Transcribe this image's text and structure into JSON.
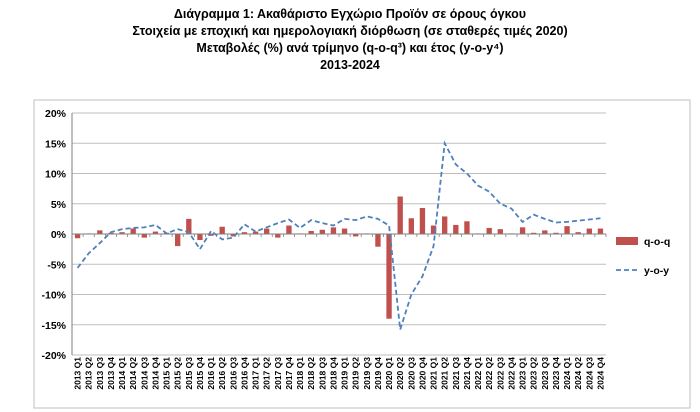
{
  "title_lines": [
    "Διάγραμμα 1: Ακαθάριστο Εγχώριο Προϊόν σε όρους όγκου",
    "Στοιχεία με εποχική και ημερολογιακή διόρθωση (σε σταθερές τιμές 2020)",
    "Μεταβολές (%) ανά τρίμηνο (q-o-q³) και έτος (y-o-y⁴)",
    "2013-2024"
  ],
  "chart_data": {
    "type": "bar",
    "categories": [
      "2013 Q1",
      "2013 Q2",
      "2013 Q3",
      "2013 Q4",
      "2014 Q1",
      "2014 Q2",
      "2014 Q3",
      "2014 Q4",
      "2015 Q1",
      "2015 Q2",
      "2015 Q3",
      "2015 Q4",
      "2016 Q1",
      "2016 Q2",
      "2016 Q3",
      "2016 Q4",
      "2017 Q1",
      "2017 Q2",
      "2017 Q3",
      "2017 Q4",
      "2018 Q1",
      "2018 Q2",
      "2018 Q3",
      "2018 Q4",
      "2019 Q1",
      "2019 Q2",
      "2019 Q3",
      "2019 Q4",
      "2020 Q1",
      "2020 Q2",
      "2020 Q3",
      "2020 Q4",
      "2021 Q1",
      "2021 Q2",
      "2021 Q3",
      "2021 Q4",
      "2022 Q1",
      "2022 Q2",
      "2022 Q3",
      "2022 Q4",
      "2023 Q1",
      "2023 Q2",
      "2023 Q3",
      "2023 Q4",
      "2024 Q1",
      "2024 Q2",
      "2024 Q3",
      "2024 Q4"
    ],
    "series": [
      {
        "name": "q-o-q",
        "type": "bar",
        "color": "#c0504d",
        "values": [
          -0.7,
          0.1,
          0.6,
          0.2,
          0.3,
          0.9,
          -0.6,
          0.4,
          0.2,
          -2.0,
          2.5,
          -1.0,
          -0.3,
          1.2,
          -0.4,
          0.3,
          0.4,
          0.9,
          -0.6,
          1.4,
          0.1,
          0.5,
          0.7,
          1.1,
          0.9,
          -0.4,
          0.1,
          -2.1,
          -14.0,
          6.2,
          2.6,
          4.3,
          1.4,
          2.9,
          1.5,
          2.1,
          0.1,
          1.0,
          0.8,
          0.1,
          1.1,
          0.2,
          0.6,
          0.2,
          1.3,
          0.3,
          0.9,
          0.9
        ]
      },
      {
        "name": "y-o-y",
        "type": "line",
        "color": "#4f81bd",
        "dash": "dashed",
        "values": [
          -5.6,
          -3.2,
          -1.5,
          0.3,
          0.8,
          1.0,
          1.1,
          1.5,
          0.1,
          0.8,
          0.3,
          -2.5,
          0.5,
          -0.9,
          -0.6,
          1.6,
          0.4,
          1.1,
          1.8,
          2.4,
          1.0,
          2.3,
          1.8,
          1.4,
          2.5,
          2.3,
          2.9,
          2.5,
          1.4,
          -15.8,
          -10.0,
          -7.0,
          -2.0,
          15.0,
          11.5,
          10.0,
          8.0,
          7.0,
          5.0,
          4.2,
          2.0,
          3.2,
          2.5,
          1.9,
          2.0,
          2.2,
          2.4,
          2.6
        ]
      }
    ],
    "ylim": [
      -20,
      20
    ],
    "yticks": [
      -20,
      -15,
      -10,
      -5,
      0,
      5,
      10,
      15,
      20
    ],
    "ytick_labels": [
      "-20%",
      "-15%",
      "-10%",
      "-5%",
      "0%",
      "5%",
      "10%",
      "15%",
      "20%"
    ],
    "grid": "horizontal",
    "legend_position": "right",
    "xlabel": "",
    "ylabel": ""
  },
  "colors": {
    "frame": "#bfbfbf",
    "gridline": "#bfbfbf",
    "axis": "#7f7f7f"
  }
}
